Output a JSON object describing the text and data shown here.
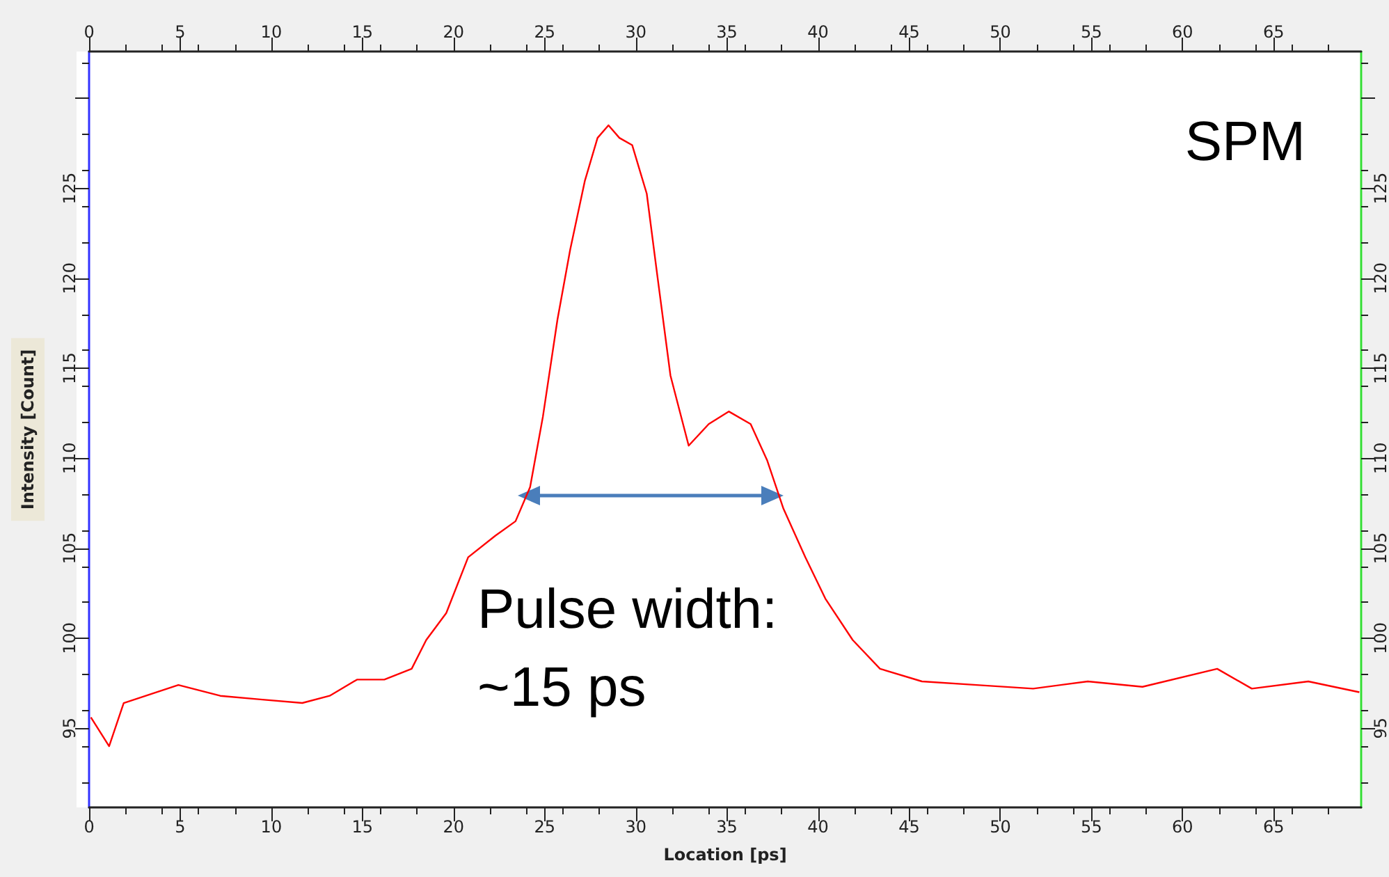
{
  "chart_data": {
    "type": "line",
    "xlabel": "Location [ps]",
    "ylabel": "Intensity [Count]",
    "x": [
      0.1,
      1.1,
      1.9,
      3.4,
      4.9,
      7.2,
      9.4,
      11.7,
      13.2,
      14.7,
      16.2,
      17.7,
      18.5,
      19.6,
      20.8,
      22.3,
      23.4,
      24.2,
      24.9,
      25.7,
      26.4,
      27.2,
      27.9,
      28.5,
      29.1,
      29.8,
      30.6,
      31.2,
      31.9,
      32.9,
      34.0,
      35.1,
      36.3,
      37.2,
      38.1,
      39.3,
      40.4,
      41.9,
      43.4,
      45.7,
      48.7,
      51.8,
      54.8,
      57.8,
      61.9,
      63.8,
      66.9,
      69.7
    ],
    "series": [
      {
        "color": "#ff0000",
        "values": [
          95.6,
          94.0,
          96.4,
          96.9,
          97.4,
          96.8,
          96.6,
          96.4,
          96.8,
          97.7,
          97.7,
          98.3,
          99.9,
          101.4,
          104.5,
          105.7,
          106.5,
          108.4,
          112.3,
          117.7,
          121.6,
          125.4,
          127.8,
          128.5,
          127.8,
          127.4,
          124.7,
          120.0,
          114.6,
          110.7,
          111.9,
          112.6,
          111.9,
          109.9,
          107.2,
          104.5,
          102.2,
          99.9,
          98.3,
          97.6,
          97.4,
          97.2,
          97.6,
          97.3,
          98.3,
          97.2,
          97.6,
          97.0
        ]
      }
    ],
    "xlim": [
      0,
      69.8
    ],
    "xticks": [
      0,
      5,
      10,
      15,
      20,
      25,
      30,
      35,
      40,
      45,
      50,
      55,
      60,
      65
    ],
    "x2lim": [
      0,
      69.8
    ],
    "x2ticks": [
      0,
      5,
      10,
      15,
      20,
      25,
      30,
      35,
      40,
      45,
      50,
      55,
      60,
      65
    ],
    "ylim": [
      90.6,
      132.6
    ],
    "yticks": [
      95,
      100,
      105,
      110,
      115,
      120,
      125,
      {
        "value": 130,
        "label": null
      }
    ],
    "y2lim": [
      90.6,
      132.6
    ],
    "y2ticks": [
      95,
      100,
      105,
      110,
      115,
      120,
      125,
      {
        "value": 130,
        "label": null
      }
    ],
    "annotations": [
      "SPM",
      "Pulse width:\n~15 ps"
    ],
    "grid": false,
    "marker": "none",
    "line_style": "solid"
  }
}
